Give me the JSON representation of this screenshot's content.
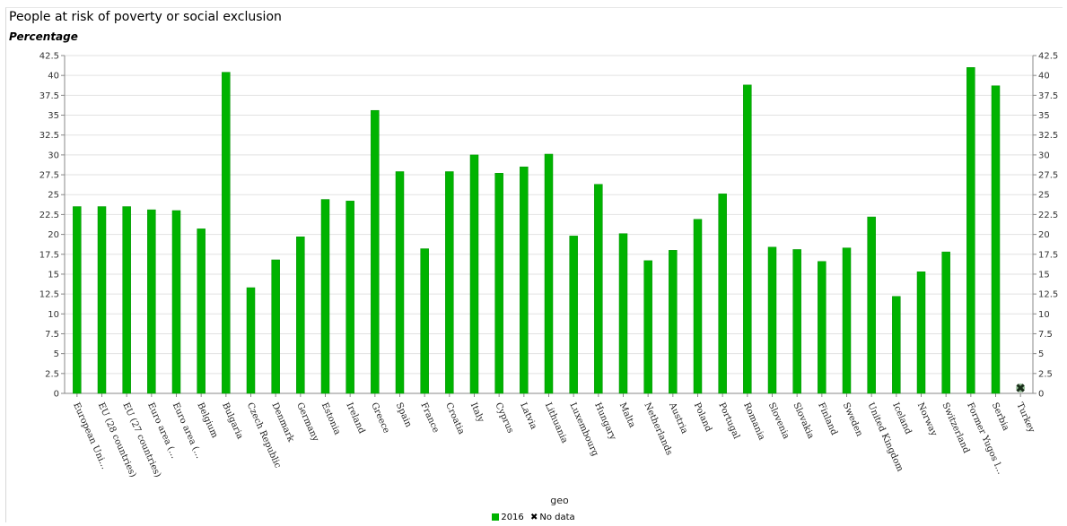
{
  "title": "People at risk of poverty or social exclusion",
  "subtitle": "Percentage",
  "legend": {
    "series_label": "2016",
    "nodata_label": "No data"
  },
  "colors": {
    "bar": "#00b300",
    "bar_edge": "#008f00",
    "grid": "#e2e2e2",
    "axis": "#888888",
    "nodata": "#1a2e1a"
  },
  "chart_data": {
    "type": "bar",
    "title": "People at risk of poverty or social exclusion",
    "subtitle": "Percentage",
    "xlabel": "geo",
    "ylabel": "",
    "ylim": [
      0,
      42.5
    ],
    "yticks": [
      "0",
      "2.5",
      "5",
      "7.5",
      "10",
      "12.5",
      "15",
      "17.5",
      "20",
      "22.5",
      "25",
      "27.5",
      "30",
      "32.5",
      "35",
      "37.5",
      "40",
      "42.5"
    ],
    "grid": true,
    "legend_position": "bottom",
    "categories": [
      "European Uni...",
      "EU (28 countries)",
      "EU (27 countries)",
      "Euro area (...",
      "Euro area (...",
      "Belgium",
      "Bulgaria",
      "Czech Republic",
      "Denmark",
      "Germany",
      "Estonia",
      "Ireland",
      "Greece",
      "Spain",
      "France",
      "Croatia",
      "Italy",
      "Cyprus",
      "Latvia",
      "Lithuania",
      "Luxembourg",
      "Hungary",
      "Malta",
      "Netherlands",
      "Austria",
      "Poland",
      "Portugal",
      "Romania",
      "Slovenia",
      "Slovakia",
      "Finland",
      "Sweden",
      "United Kingdom",
      "Iceland",
      "Norway",
      "Switzerland",
      "Former Yugos l...",
      "Serbia",
      "Turkey"
    ],
    "series": [
      {
        "name": "2016",
        "values": [
          23.5,
          23.5,
          23.5,
          23.1,
          23.0,
          20.7,
          40.4,
          13.3,
          16.8,
          19.7,
          24.4,
          24.2,
          35.6,
          27.9,
          18.2,
          27.9,
          30.0,
          27.7,
          28.5,
          30.1,
          19.8,
          26.3,
          20.1,
          16.7,
          18.0,
          21.9,
          25.1,
          38.8,
          18.4,
          18.1,
          16.6,
          18.3,
          22.2,
          12.2,
          15.3,
          17.8,
          41.0,
          38.7,
          null
        ]
      }
    ],
    "no_data_categories": [
      "Turkey"
    ]
  }
}
